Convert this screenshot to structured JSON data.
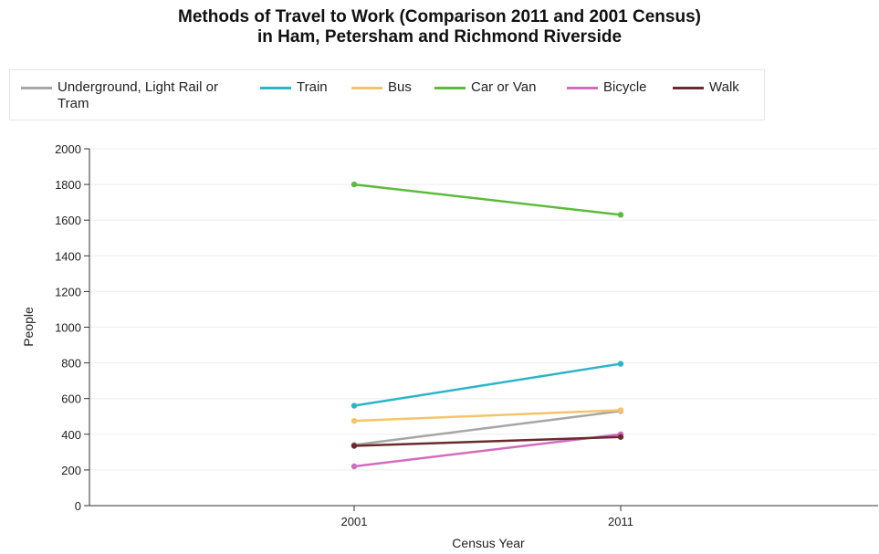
{
  "chart_data": {
    "type": "line",
    "title": [
      "Methods of Travel to Work (Comparison 2011 and 2001 Census)",
      "in Ham, Petersham and Richmond Riverside"
    ],
    "xlabel": "Census Year",
    "ylabel": "People",
    "categories": [
      "2001",
      "2011"
    ],
    "ylim": [
      0,
      2000
    ],
    "yticks": [
      0,
      200,
      400,
      600,
      800,
      1000,
      1200,
      1400,
      1600,
      1800,
      2000
    ],
    "grid": true,
    "legend_position": "top",
    "series": [
      {
        "name": "Underground, Light Rail or Tram",
        "color": "#a6a6a6",
        "values": [
          340,
          530
        ]
      },
      {
        "name": "Train",
        "color": "#2bb5c8",
        "values": [
          560,
          795
        ]
      },
      {
        "name": "Bus",
        "color": "#f5c46a",
        "values": [
          475,
          535
        ]
      },
      {
        "name": "Car or Van",
        "color": "#5dbb3c",
        "values": [
          1800,
          1630
        ]
      },
      {
        "name": "Bicycle",
        "color": "#d36cbd",
        "values": [
          220,
          400
        ]
      },
      {
        "name": "Walk",
        "color": "#6b2a2e",
        "values": [
          335,
          385
        ]
      }
    ]
  }
}
